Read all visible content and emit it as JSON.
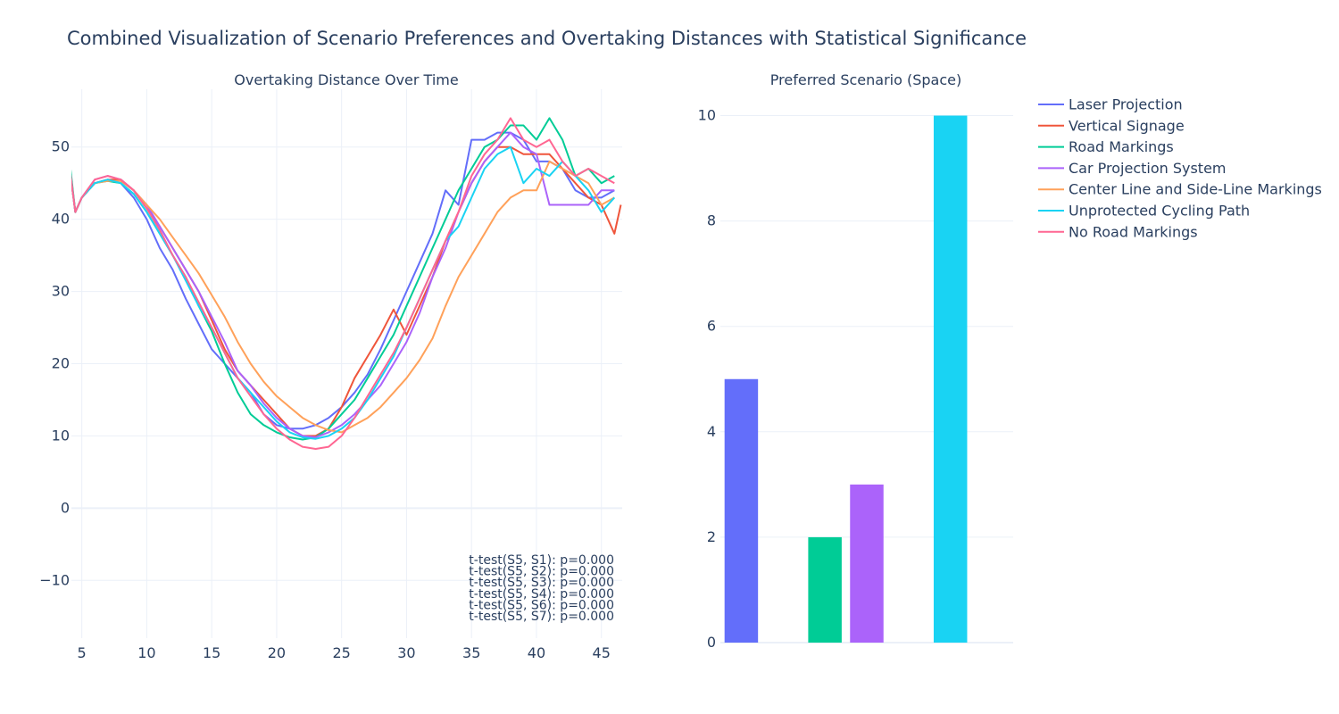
{
  "title": "Combined Visualization of Scenario Preferences and Overtaking Distances with Statistical Significance",
  "chart_data": [
    {
      "type": "line",
      "title": "Overtaking Distance Over Time",
      "xlim": [
        4.2,
        46.6
      ],
      "ylim": [
        -18,
        58
      ],
      "x_ticks": [
        5,
        10,
        15,
        20,
        25,
        30,
        35,
        40,
        45
      ],
      "y_ticks": [
        -10,
        0,
        10,
        20,
        30,
        40,
        50
      ],
      "y_tick_labels": [
        "−10",
        "0",
        "10",
        "20",
        "30",
        "40",
        "50"
      ],
      "grid": true,
      "annotations": [
        "t-test(S5, S1): p=0.000",
        "t-test(S5, S2): p=0.000",
        "t-test(S5, S3): p=0.000",
        "t-test(S5, S4): p=0.000",
        "t-test(S5, S6): p=0.000",
        "t-test(S5, S7): p=0.000"
      ],
      "series": [
        {
          "name": "Laser Projection",
          "color": "#636efa",
          "x": [
            4,
            4.5,
            5,
            6,
            7,
            8,
            9,
            10,
            11,
            12,
            13,
            14,
            15,
            16,
            17,
            18,
            19,
            20,
            21,
            22,
            23,
            24,
            25,
            26,
            27,
            28,
            29,
            30,
            31,
            32,
            33,
            34,
            35,
            36,
            37,
            38,
            39,
            40,
            41,
            42,
            43,
            44,
            45,
            46
          ],
          "y": [
            48,
            41,
            43,
            45,
            45.5,
            45,
            43,
            40,
            36,
            33,
            29,
            25.5,
            22,
            20,
            18,
            16,
            13,
            11.5,
            11,
            11,
            11.5,
            12.5,
            14,
            16,
            18.5,
            22,
            26,
            30,
            34,
            38,
            44,
            42,
            51,
            51,
            52,
            52,
            51,
            48,
            48,
            47,
            44,
            43,
            43,
            44
          ]
        },
        {
          "name": "Vertical Signage",
          "color": "#ef553b",
          "x": [
            4,
            4.5,
            5,
            6,
            7,
            8,
            9,
            10,
            11,
            12,
            13,
            14,
            15,
            16,
            17,
            18,
            19,
            20,
            21,
            22,
            23,
            24,
            25,
            26,
            27,
            28,
            29,
            30,
            31,
            32,
            33,
            34,
            35,
            36,
            37,
            38,
            39,
            40,
            41,
            42,
            43,
            44,
            45,
            46,
            46.5
          ],
          "y": [
            48,
            41,
            43,
            45,
            45.5,
            45.5,
            44,
            41.5,
            39,
            36,
            33,
            30,
            26,
            22,
            19,
            17,
            15,
            13,
            11,
            10,
            10,
            11,
            14,
            18,
            21,
            24,
            27.5,
            24,
            28,
            32,
            37,
            41,
            45,
            48,
            50,
            50,
            49,
            49,
            49,
            47,
            45,
            43,
            42,
            38,
            42
          ]
        },
        {
          "name": "Road Markings",
          "color": "#00cc96",
          "x": [
            4,
            4.5,
            5,
            6,
            7,
            8,
            9,
            10,
            11,
            12,
            13,
            14,
            15,
            16,
            17,
            18,
            19,
            20,
            21,
            22,
            23,
            24,
            25,
            26,
            27,
            28,
            29,
            30,
            31,
            32,
            33,
            34,
            35,
            36,
            37,
            38,
            39,
            40,
            41,
            42,
            43,
            44,
            45,
            46
          ],
          "y": [
            49,
            41,
            43,
            45,
            45.3,
            45,
            43.5,
            41,
            38,
            35,
            32,
            28,
            24.5,
            20,
            16,
            13,
            11.5,
            10.5,
            9.8,
            9.5,
            9.8,
            11,
            13,
            15,
            18,
            21,
            24,
            28,
            32,
            36,
            40,
            44,
            47,
            50,
            51,
            53,
            53,
            51,
            54,
            51,
            46,
            47,
            45,
            46
          ]
        },
        {
          "name": "Car Projection System",
          "color": "#ab63fa",
          "x": [
            4,
            4.5,
            5,
            6,
            7,
            8,
            9,
            10,
            11,
            12,
            13,
            14,
            15,
            16,
            17,
            18,
            19,
            20,
            21,
            22,
            23,
            24,
            25,
            26,
            27,
            28,
            29,
            30,
            31,
            32,
            33,
            34,
            35,
            36,
            37,
            38,
            39,
            40,
            41,
            42,
            43,
            44,
            45,
            46
          ],
          "y": [
            48,
            41,
            43,
            45.5,
            46,
            45.5,
            44,
            42,
            39,
            36,
            33,
            30,
            26.5,
            23,
            19,
            17,
            14.5,
            12.5,
            11,
            10,
            9.8,
            10.5,
            11.5,
            13,
            15,
            17,
            20,
            23,
            27,
            32,
            36,
            41,
            45,
            48,
            50,
            52,
            50,
            49,
            42,
            42,
            42,
            42,
            44,
            44
          ]
        },
        {
          "name": "Center Line and Side-Line Markings",
          "color": "#ffa15a",
          "x": [
            4,
            4.5,
            5,
            6,
            7,
            8,
            9,
            10,
            11,
            12,
            13,
            14,
            15,
            16,
            17,
            18,
            19,
            20,
            21,
            22,
            23,
            24,
            25,
            26,
            27,
            28,
            29,
            30,
            31,
            32,
            33,
            34,
            35,
            36,
            37,
            38,
            39,
            40,
            41,
            42,
            43,
            44,
            45,
            46
          ],
          "y": [
            48,
            41,
            43,
            45,
            45.3,
            45.3,
            44,
            42,
            40,
            37.5,
            35,
            32.5,
            29.5,
            26.5,
            23,
            20,
            17.5,
            15.5,
            14,
            12.5,
            11.5,
            10.8,
            10.5,
            11.5,
            12.5,
            14,
            16,
            18,
            20.5,
            23.5,
            28,
            32,
            35,
            38,
            41,
            43,
            44,
            44,
            48,
            47,
            46,
            45,
            42,
            43
          ]
        },
        {
          "name": "Unprotected Cycling Path",
          "color": "#19d3f3",
          "x": [
            4,
            4.5,
            5,
            6,
            7,
            8,
            9,
            10,
            11,
            12,
            13,
            14,
            15,
            16,
            17,
            18,
            19,
            20,
            21,
            22,
            23,
            24,
            25,
            26,
            27,
            28,
            29,
            30,
            31,
            32,
            33,
            34,
            35,
            36,
            37,
            38,
            39,
            40,
            41,
            42,
            43,
            44,
            45,
            46
          ],
          "y": [
            48,
            41,
            43,
            45,
            45.5,
            45,
            43.5,
            41,
            38,
            35,
            31.5,
            28,
            25,
            21.5,
            18,
            16,
            14,
            12,
            10.5,
            9.8,
            9.6,
            10,
            11,
            12.5,
            15,
            18,
            21,
            25,
            29,
            33,
            37,
            39,
            43,
            47,
            49,
            50,
            45,
            47,
            46,
            48,
            46,
            44,
            41,
            43
          ]
        },
        {
          "name": "No Road Markings",
          "color": "#ff6692",
          "x": [
            4,
            4.5,
            5,
            6,
            7,
            8,
            9,
            10,
            11,
            12,
            13,
            14,
            15,
            16,
            17,
            18,
            19,
            20,
            21,
            22,
            23,
            24,
            25,
            26,
            27,
            28,
            29,
            30,
            31,
            32,
            33,
            34,
            35,
            36,
            37,
            38,
            39,
            40,
            41,
            42,
            43,
            44,
            45,
            46
          ],
          "y": [
            48,
            41,
            43,
            45.5,
            46,
            45.5,
            44,
            41.5,
            38.5,
            35,
            32,
            28.5,
            25,
            21.5,
            18,
            15.5,
            13,
            11,
            9.5,
            8.5,
            8.2,
            8.5,
            10,
            12.5,
            15.5,
            18.5,
            21.5,
            25,
            29,
            33,
            37,
            41,
            46,
            49,
            51,
            54,
            51,
            50,
            51,
            48,
            46,
            47,
            46,
            45
          ]
        }
      ]
    },
    {
      "type": "bar",
      "title": "Preferred Scenario (Space)",
      "categories": [
        "Laser Projection",
        "Vertical Signage",
        "Road Markings",
        "Car Projection System",
        "Center Line and Side-Line Markings",
        "Unprotected Cycling Path",
        "No Road Markings"
      ],
      "values": [
        5,
        0,
        2,
        3,
        0,
        10,
        0
      ],
      "colors": [
        "#636efa",
        "#ef553b",
        "#00cc96",
        "#ab63fa",
        "#ffa15a",
        "#19d3f3",
        "#ff6692"
      ],
      "ylim": [
        0,
        10.5
      ],
      "y_ticks": [
        0,
        2,
        4,
        6,
        8,
        10
      ],
      "grid": true
    }
  ],
  "legend": {
    "placement": "right",
    "items": [
      {
        "name": "Laser Projection",
        "color": "#636efa"
      },
      {
        "name": "Vertical Signage",
        "color": "#ef553b"
      },
      {
        "name": "Road Markings",
        "color": "#00cc96"
      },
      {
        "name": "Car Projection System",
        "color": "#ab63fa"
      },
      {
        "name": "Center Line and Side-Line Markings",
        "color": "#ffa15a"
      },
      {
        "name": "Unprotected Cycling Path",
        "color": "#19d3f3"
      },
      {
        "name": "No Road Markings",
        "color": "#ff6692"
      }
    ]
  }
}
